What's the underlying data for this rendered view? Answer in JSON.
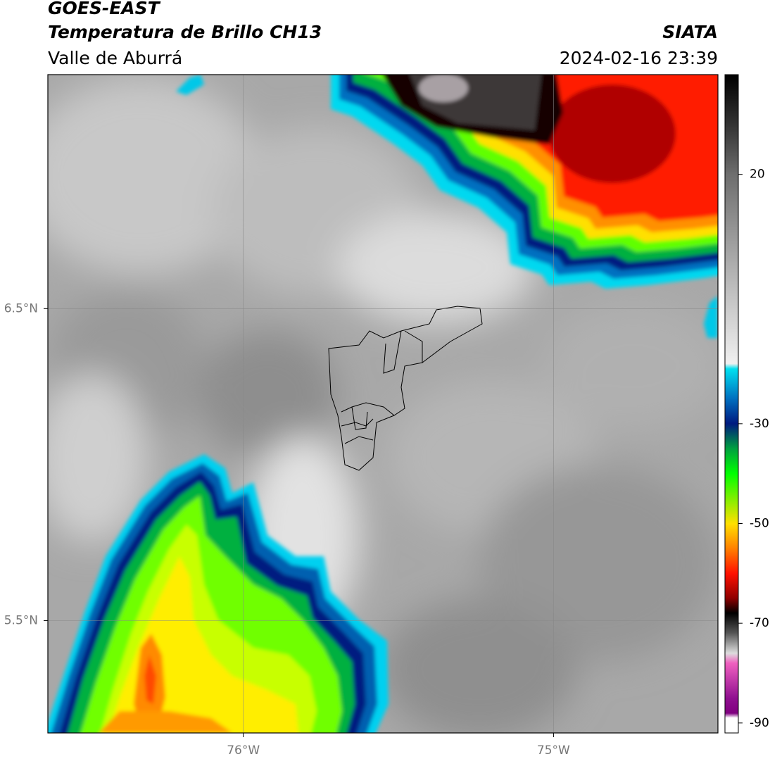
{
  "header": {
    "title": "GOES-EAST",
    "subtitle": "Temperatura de Brillo CH13",
    "region": "Valle de Aburrá",
    "source": "SIATA",
    "timestamp": "2024-02-16 23:39"
  },
  "map": {
    "xlim": [
      -76.63,
      -74.47
    ],
    "ylim": [
      5.14,
      7.25
    ],
    "xticks": [
      {
        "value": -76,
        "label": "76°W"
      },
      {
        "value": -75,
        "label": "75°W"
      }
    ],
    "yticks": [
      {
        "value": 6.5,
        "label": "6.5°N"
      },
      {
        "value": 5.5,
        "label": "5.5°N"
      }
    ]
  },
  "colorbar": {
    "lim": [
      -92,
      40
    ],
    "ticks": [
      20,
      -30,
      -50,
      -70,
      -90
    ]
  }
}
